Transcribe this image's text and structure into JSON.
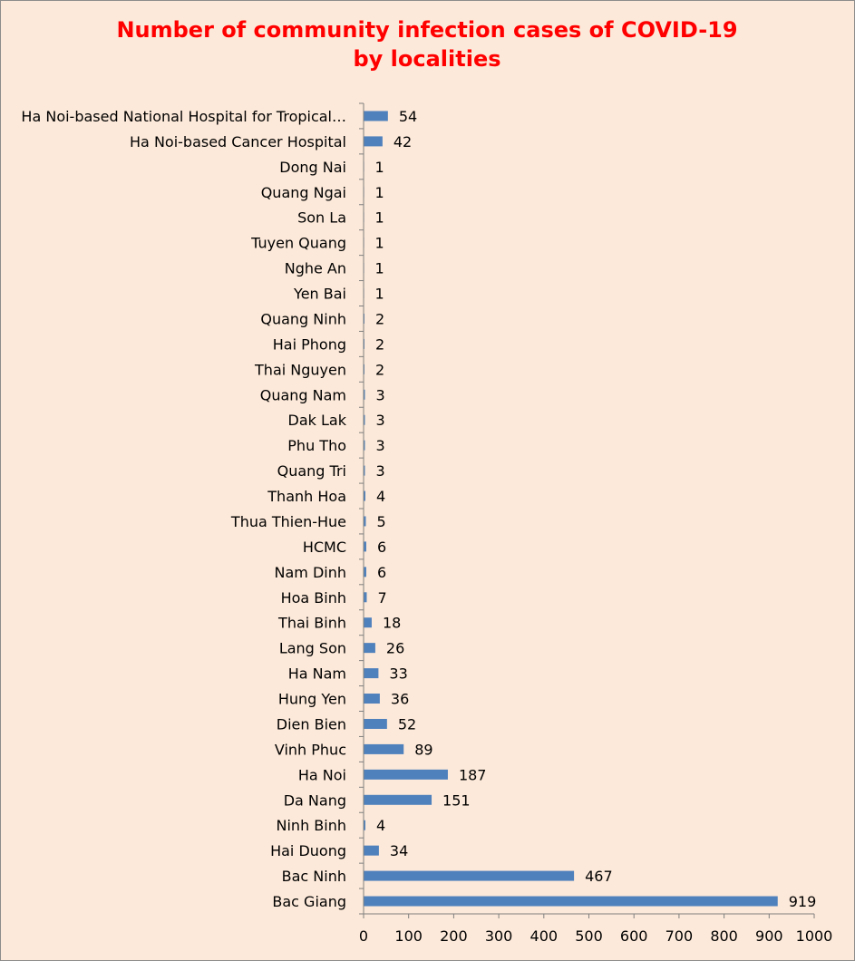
{
  "chart_data": {
    "type": "bar",
    "orientation": "horizontal",
    "title": "Number of community infection cases of COVID-19 by localities",
    "categories": [
      "Ha Noi-based National Hospital for Tropical…",
      "Ha Noi-based Cancer Hospital",
      "Dong Nai",
      "Quang Ngai",
      "Son La",
      "Tuyen Quang",
      "Nghe An",
      "Yen Bai",
      "Quang Ninh",
      "Hai Phong",
      "Thai Nguyen",
      "Quang Nam",
      "Dak Lak",
      "Phu Tho",
      "Quang Tri",
      "Thanh Hoa",
      "Thua Thien-Hue",
      "HCMC",
      "Nam Dinh",
      "Hoa Binh",
      "Thai Binh",
      "Lang Son",
      "Ha Nam",
      "Hung Yen",
      "Dien Bien",
      "Vinh Phuc",
      "Ha Noi",
      "Da Nang",
      "Ninh Binh",
      "Hai Duong",
      "Bac Ninh",
      "Bac Giang"
    ],
    "values": [
      54,
      42,
      1,
      1,
      1,
      1,
      1,
      1,
      2,
      2,
      2,
      3,
      3,
      3,
      3,
      4,
      5,
      6,
      6,
      7,
      18,
      26,
      33,
      36,
      52,
      89,
      187,
      151,
      4,
      34,
      467,
      919
    ],
    "xlim": [
      0,
      1000
    ],
    "xticks": [
      0,
      100,
      200,
      300,
      400,
      500,
      600,
      700,
      800,
      900,
      1000
    ],
    "xlabel": "",
    "ylabel": "",
    "grid": false,
    "legend": "none",
    "colors": {
      "bar": "#4f81bd",
      "background": "#fde9d9",
      "title": "#ff0000",
      "axis": "#7f7f7f",
      "border": "#8c8c8c"
    }
  }
}
